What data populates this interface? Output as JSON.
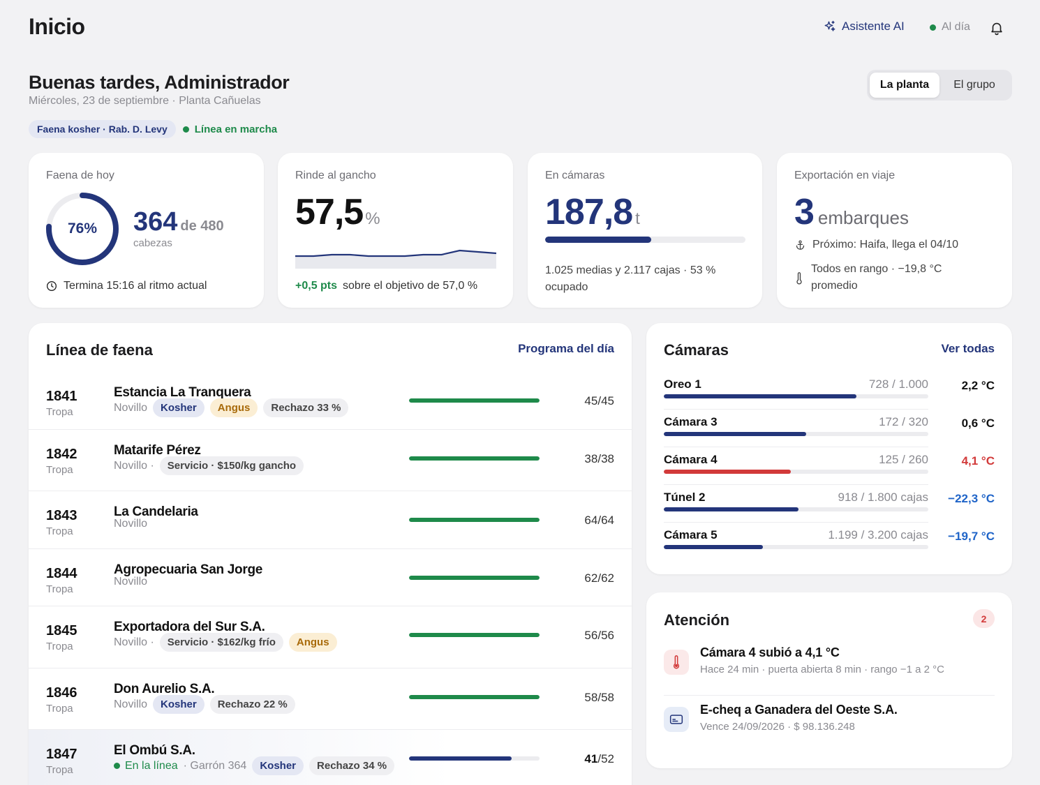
{
  "header": {
    "title": "Inicio",
    "ai_label": "Asistente AI",
    "status_label": "Al día"
  },
  "greeting": {
    "title": "Buenas tardes, Administrador",
    "subtitle": "Miércoles, 23 de septiembre · Planta Cañuelas",
    "kosher_chip": "Faena kosher · Rab. D. Levy",
    "line_status": "Línea en marcha"
  },
  "scope": {
    "options": [
      "La planta",
      "El grupo"
    ],
    "selected": "La planta"
  },
  "kpis": {
    "faena": {
      "label": "Faena de hoy",
      "percent_label": "76%",
      "progress": 0.76,
      "value": "364",
      "of": "de 480",
      "unit": "cabezas",
      "foot": "Termina 15:16 al ritmo actual"
    },
    "rinde": {
      "label": "Rinde al gancho",
      "value": "57,5",
      "unit": "%",
      "delta": "+0,5 pts",
      "foot": "sobre el objetivo de 57,0 %",
      "trend": [
        57.2,
        57.2,
        57.3,
        57.3,
        57.2,
        57.2,
        57.2,
        57.3,
        57.3,
        57.6,
        57.5,
        57.4
      ]
    },
    "camaras": {
      "label": "En cámaras",
      "value": "187,8",
      "unit": "t",
      "occupancy": 0.53,
      "foot": "1.025 medias y 2.117 cajas · 53 % ocupado"
    },
    "export": {
      "label": "Exportación en viaje",
      "value": "3",
      "unit": "embarques",
      "next": "Próximo: Haifa, llega el 04/10",
      "temp": "Todos en rango · −19,8 °C promedio"
    }
  },
  "linea": {
    "title": "Línea de faena",
    "link": "Programa del día",
    "rows": [
      {
        "num": "1841",
        "sub": "Tropa",
        "name": "Estancia La Tranquera",
        "category": "Novillo",
        "status": "",
        "extra": "",
        "tags": [
          {
            "text": "Kosher",
            "kind": "k"
          },
          {
            "text": "Angus",
            "kind": "a"
          },
          {
            "text": "Rechazo 33 %",
            "kind": "g"
          }
        ],
        "done": 45,
        "total": 45,
        "count_done": "45",
        "count_total": "45"
      },
      {
        "num": "1842",
        "sub": "Tropa",
        "name": "Matarife Pérez",
        "category": "Novillo ·",
        "status": "",
        "extra": "",
        "tags": [
          {
            "text": "Servicio · $150/kg gancho",
            "kind": "g"
          }
        ],
        "done": 38,
        "total": 38,
        "count_done": "38",
        "count_total": "38"
      },
      {
        "num": "1843",
        "sub": "Tropa",
        "name": "La Candelaria",
        "category": "Novillo",
        "status": "",
        "extra": "",
        "tags": [],
        "done": 64,
        "total": 64,
        "count_done": "64",
        "count_total": "64"
      },
      {
        "num": "1844",
        "sub": "Tropa",
        "name": "Agropecuaria San Jorge",
        "category": "Novillo",
        "status": "",
        "extra": "",
        "tags": [],
        "done": 62,
        "total": 62,
        "count_done": "62",
        "count_total": "62"
      },
      {
        "num": "1845",
        "sub": "Tropa",
        "name": "Exportadora del Sur S.A.",
        "category": "Novillo ·",
        "status": "",
        "extra": "",
        "tags": [
          {
            "text": "Servicio · $162/kg frío",
            "kind": "g"
          },
          {
            "text": "Angus",
            "kind": "a"
          }
        ],
        "done": 56,
        "total": 56,
        "count_done": "56",
        "count_total": "56"
      },
      {
        "num": "1846",
        "sub": "Tropa",
        "name": "Don Aurelio S.A.",
        "category": "Novillo",
        "status": "",
        "extra": "",
        "tags": [
          {
            "text": "Kosher",
            "kind": "k"
          },
          {
            "text": "Rechazo 22 %",
            "kind": "g"
          }
        ],
        "done": 58,
        "total": 58,
        "count_done": "58",
        "count_total": "58"
      },
      {
        "num": "1847",
        "sub": "Tropa",
        "name": "El Ombú S.A.",
        "category": "",
        "status": "En la línea",
        "extra": "· Garrón 364",
        "tags": [
          {
            "text": "Kosher",
            "kind": "k"
          },
          {
            "text": "Rechazo 34 %",
            "kind": "g"
          }
        ],
        "done": 41,
        "total": 52,
        "count_done": "41",
        "count_total": "52"
      }
    ]
  },
  "camaras": {
    "title": "Cámaras",
    "link": "Ver todas",
    "items": [
      {
        "name": "Oreo 1",
        "capacity": "728 / 1.000",
        "fill": 0.728,
        "temp": "2,2 °C",
        "tone": "normal"
      },
      {
        "name": "Cámara 3",
        "capacity": "172 / 320",
        "fill": 0.5375,
        "temp": "0,6 °C",
        "tone": "normal"
      },
      {
        "name": "Cámara 4",
        "capacity": "125 / 260",
        "fill": 0.48,
        "temp": "4,1 °C",
        "tone": "alert"
      },
      {
        "name": "Túnel 2",
        "capacity": "918 / 1.800 cajas",
        "fill": 0.51,
        "temp": "−22,3 °C",
        "tone": "frozen"
      },
      {
        "name": "Cámara 5",
        "capacity": "1.199 / 3.200 cajas",
        "fill": 0.375,
        "temp": "−19,7 °C",
        "tone": "frozen"
      }
    ]
  },
  "atencion": {
    "title": "Atención",
    "count": "2",
    "items": [
      {
        "title": "Cámara 4 subió a 4,1 °C",
        "sub": "Hace 24 min · puerta abierta 8 min · rango −1 a 2 °C",
        "icon": "thermometer-icon",
        "color": "#d23a3a"
      },
      {
        "title": "E-cheq a Ganadera del Oeste S.A.",
        "sub": "Vence 24/09/2026 · $ 98.136.248",
        "icon": "card-icon",
        "color": "#23357a"
      }
    ]
  },
  "colors": {
    "accent": "#23357a",
    "green": "#1e8a4a",
    "red": "#d23a3a",
    "frozen_blue": "#1f64c8"
  }
}
